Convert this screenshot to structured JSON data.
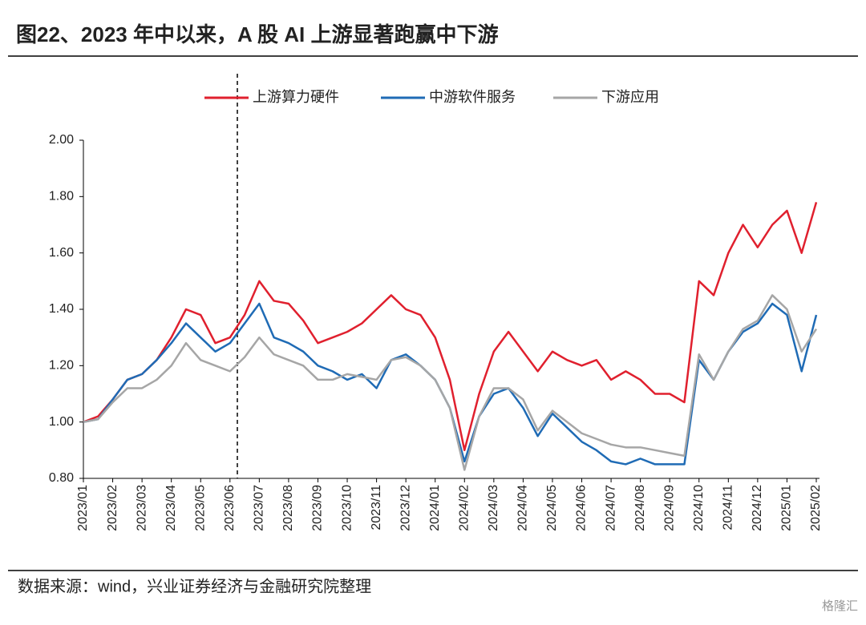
{
  "chart_data": {
    "type": "line",
    "title": "图22、2023 年中以来，A 股 AI 上游显著跑赢中下游",
    "source": "数据来源：wind，兴业证券经济与金融研究院整理",
    "watermark": "格隆汇",
    "categories": [
      "2023/01",
      null,
      "2023/02",
      null,
      "2023/03",
      null,
      "2023/04",
      null,
      "2023/05",
      null,
      "2023/06",
      null,
      "2023/07",
      null,
      "2023/08",
      null,
      "2023/09",
      null,
      "2023/10",
      null,
      "2023/11",
      null,
      "2023/12",
      null,
      "2024/01",
      null,
      "2024/02",
      null,
      "2024/03",
      null,
      "2024/04",
      null,
      "2024/05",
      null,
      "2024/06",
      null,
      "2024/07",
      null,
      "2024/08",
      null,
      "2024/09",
      null,
      "2024/10",
      null,
      "2024/11",
      null,
      "2024/12",
      null,
      "2025/01",
      null,
      "2025/02"
    ],
    "series": [
      {
        "name": "上游算力硬件",
        "color": "#e0202e",
        "values": [
          1.0,
          1.02,
          1.08,
          1.15,
          1.17,
          1.22,
          1.3,
          1.4,
          1.38,
          1.28,
          1.3,
          1.38,
          1.5,
          1.43,
          1.42,
          1.36,
          1.28,
          1.3,
          1.32,
          1.35,
          1.4,
          1.45,
          1.4,
          1.38,
          1.3,
          1.15,
          0.9,
          1.1,
          1.25,
          1.32,
          1.25,
          1.18,
          1.25,
          1.22,
          1.2,
          1.22,
          1.15,
          1.18,
          1.15,
          1.1,
          1.1,
          1.07,
          1.5,
          1.45,
          1.6,
          1.7,
          1.62,
          1.7,
          1.75,
          1.6,
          1.78
        ]
      },
      {
        "name": "中游软件服务",
        "color": "#1f6bb5",
        "values": [
          1.0,
          1.01,
          1.08,
          1.15,
          1.17,
          1.22,
          1.28,
          1.35,
          1.3,
          1.25,
          1.28,
          1.35,
          1.42,
          1.3,
          1.28,
          1.25,
          1.2,
          1.18,
          1.15,
          1.17,
          1.12,
          1.22,
          1.24,
          1.2,
          1.15,
          1.05,
          0.86,
          1.02,
          1.1,
          1.12,
          1.05,
          0.95,
          1.03,
          0.98,
          0.93,
          0.9,
          0.86,
          0.85,
          0.87,
          0.85,
          0.85,
          0.85,
          1.22,
          1.15,
          1.25,
          1.32,
          1.35,
          1.42,
          1.38,
          1.18,
          1.38
        ]
      },
      {
        "name": "下游应用",
        "color": "#a6a6a6",
        "values": [
          1.0,
          1.01,
          1.07,
          1.12,
          1.12,
          1.15,
          1.2,
          1.28,
          1.22,
          1.2,
          1.18,
          1.23,
          1.3,
          1.24,
          1.22,
          1.2,
          1.15,
          1.15,
          1.17,
          1.16,
          1.15,
          1.22,
          1.23,
          1.2,
          1.15,
          1.05,
          0.83,
          1.02,
          1.12,
          1.12,
          1.08,
          0.97,
          1.04,
          1.0,
          0.96,
          0.94,
          0.92,
          0.91,
          0.91,
          0.9,
          0.89,
          0.88,
          1.24,
          1.15,
          1.25,
          1.33,
          1.36,
          1.45,
          1.4,
          1.25,
          1.33
        ]
      }
    ],
    "ylim": [
      0.8,
      2.0
    ],
    "yticks": [
      {
        "value": 0.8,
        "label": "0.80"
      },
      {
        "value": 1.0,
        "label": "1.00"
      },
      {
        "value": 1.2,
        "label": "1.20"
      },
      {
        "value": 1.4,
        "label": "1.40"
      },
      {
        "value": 1.6,
        "label": "1.60"
      },
      {
        "value": 1.8,
        "label": "1.80"
      },
      {
        "value": 2.0,
        "label": "2.00"
      }
    ],
    "legend": "top"
  }
}
